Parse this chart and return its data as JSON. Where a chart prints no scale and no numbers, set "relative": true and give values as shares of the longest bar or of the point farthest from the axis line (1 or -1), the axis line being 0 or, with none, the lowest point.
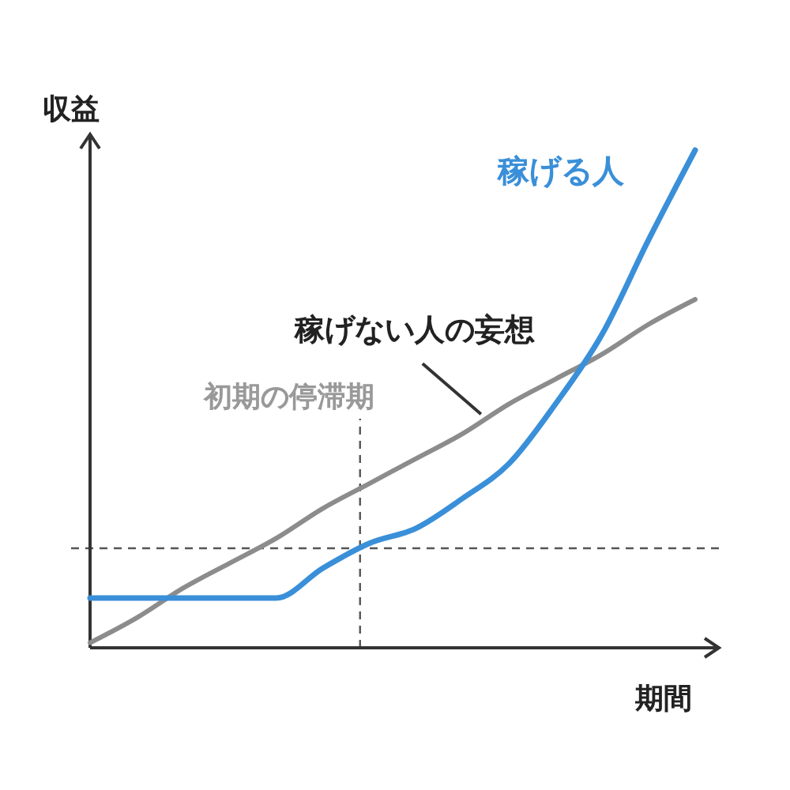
{
  "chart_data": {
    "type": "line",
    "relative": true,
    "xlabel": "期間",
    "ylabel": "収益",
    "categories": [
      null,
      null,
      null,
      null,
      null,
      null,
      null,
      null,
      null,
      null,
      null,
      null,
      null,
      null
    ],
    "series": [
      {
        "name": "稼げない人の妄想",
        "color": "#8c8c8c",
        "values": [
          0.01,
          0.06,
          0.12,
          0.17,
          0.22,
          0.28,
          0.33,
          0.38,
          0.43,
          0.49,
          0.54,
          0.59,
          0.65,
          0.7
        ]
      },
      {
        "name": "稼げる人",
        "color": "#3a8fd9",
        "values": [
          0.1,
          0.1,
          0.1,
          0.1,
          0.1,
          0.16,
          0.21,
          0.24,
          0.3,
          0.37,
          0.49,
          0.63,
          0.82,
          1
        ]
      }
    ],
    "ref_lines": [
      {
        "axis": "y",
        "value": 0.2,
        "color": "#555555",
        "line_style": "dashed"
      }
    ],
    "annotations": [
      "初期の停滞期"
    ],
    "line_style": "solid",
    "marker": "none"
  }
}
